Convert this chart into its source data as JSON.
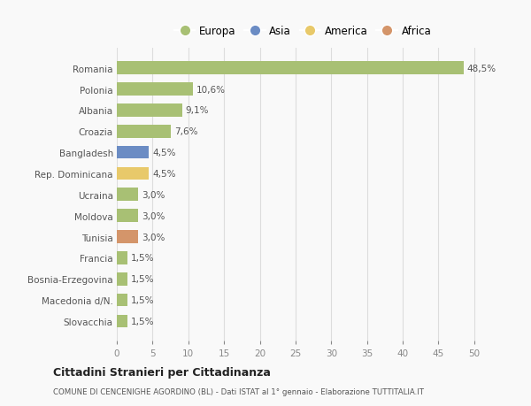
{
  "countries": [
    "Slovacchia",
    "Macedonia d/N.",
    "Bosnia-Erzegovina",
    "Francia",
    "Tunisia",
    "Moldova",
    "Ucraina",
    "Rep. Dominicana",
    "Bangladesh",
    "Croazia",
    "Albania",
    "Polonia",
    "Romania"
  ],
  "values": [
    1.5,
    1.5,
    1.5,
    1.5,
    3.0,
    3.0,
    3.0,
    4.5,
    4.5,
    7.6,
    9.1,
    10.6,
    48.5
  ],
  "labels": [
    "1,5%",
    "1,5%",
    "1,5%",
    "1,5%",
    "3,0%",
    "3,0%",
    "3,0%",
    "4,5%",
    "4,5%",
    "7,6%",
    "9,1%",
    "10,6%",
    "48,5%"
  ],
  "colors": [
    "#a8c074",
    "#a8c074",
    "#a8c074",
    "#a8c074",
    "#d4956a",
    "#a8c074",
    "#a8c074",
    "#e8c96a",
    "#6b8cc4",
    "#a8c074",
    "#a8c074",
    "#a8c074",
    "#a8c074"
  ],
  "legend_labels": [
    "Europa",
    "Asia",
    "America",
    "Africa"
  ],
  "legend_colors": [
    "#a8c074",
    "#6b8cc4",
    "#e8c96a",
    "#d4956a"
  ],
  "title": "Cittadini Stranieri per Cittadinanza",
  "subtitle": "COMUNE DI CENCENIGHE AGORDINO (BL) - Dati ISTAT al 1° gennaio - Elaborazione TUTTITALIA.IT",
  "xlim": [
    0,
    52
  ],
  "xticks": [
    0,
    5,
    10,
    15,
    20,
    25,
    30,
    35,
    40,
    45,
    50
  ],
  "background_color": "#f9f9f9",
  "grid_color": "#dddddd",
  "label_color": "#555555",
  "tick_color": "#888888"
}
